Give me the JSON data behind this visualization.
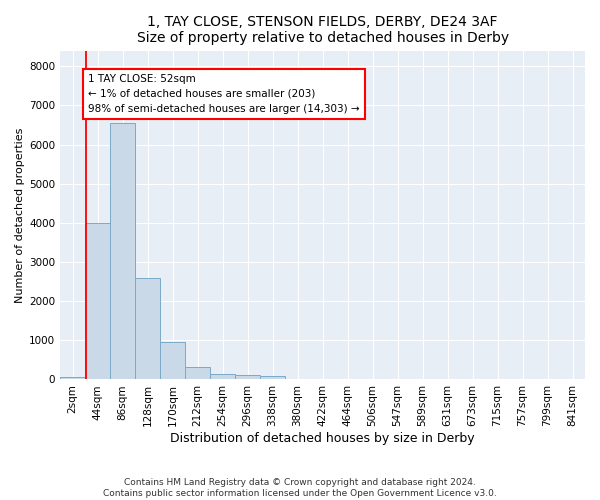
{
  "title1": "1, TAY CLOSE, STENSON FIELDS, DERBY, DE24 3AF",
  "title2": "Size of property relative to detached houses in Derby",
  "xlabel": "Distribution of detached houses by size in Derby",
  "ylabel": "Number of detached properties",
  "bar_color": "#c9d9e8",
  "bar_edge_color": "#7aaac8",
  "categories": [
    "2sqm",
    "44sqm",
    "86sqm",
    "128sqm",
    "170sqm",
    "212sqm",
    "254sqm",
    "296sqm",
    "338sqm",
    "380sqm",
    "422sqm",
    "464sqm",
    "506sqm",
    "547sqm",
    "589sqm",
    "631sqm",
    "673sqm",
    "715sqm",
    "757sqm",
    "799sqm",
    "841sqm"
  ],
  "values": [
    75,
    4000,
    6550,
    2600,
    950,
    310,
    130,
    120,
    100,
    0,
    0,
    0,
    0,
    0,
    0,
    0,
    0,
    0,
    0,
    0,
    0
  ],
  "property_line_x": 0.52,
  "annotation_text": "1 TAY CLOSE: 52sqm\n← 1% of detached houses are smaller (203)\n98% of semi-detached houses are larger (14,303) →",
  "annotation_box_color": "white",
  "annotation_box_edge_color": "red",
  "vline_color": "red",
  "ylim": [
    0,
    8400
  ],
  "yticks": [
    0,
    1000,
    2000,
    3000,
    4000,
    5000,
    6000,
    7000,
    8000
  ],
  "background_color": "#e8eef5",
  "footer_text": "Contains HM Land Registry data © Crown copyright and database right 2024.\nContains public sector information licensed under the Open Government Licence v3.0.",
  "grid_color": "white",
  "title1_fontsize": 10,
  "title2_fontsize": 9,
  "xlabel_fontsize": 9,
  "ylabel_fontsize": 8,
  "tick_fontsize": 7.5,
  "footer_fontsize": 6.5,
  "ann_fontsize": 7.5
}
